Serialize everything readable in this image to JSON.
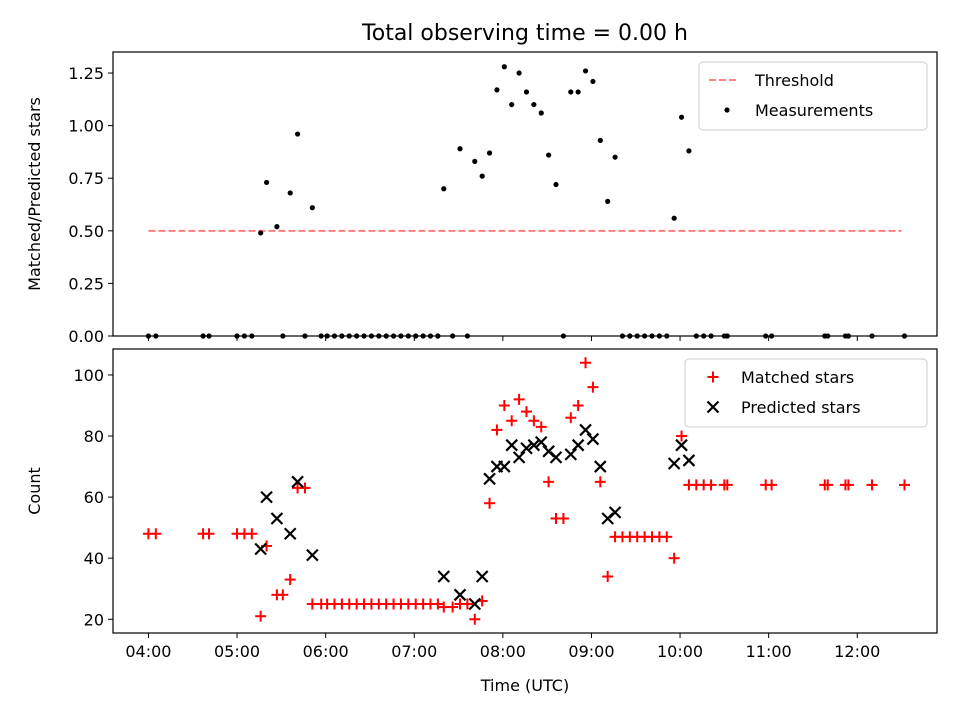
{
  "title": "Total observing time = 0.00 h",
  "chart_data": [
    {
      "type": "scatter",
      "ylabel": "Matched/Predicted stars",
      "xlabel": "",
      "xlim": [
        "03:36",
        "12:54"
      ],
      "ylim": [
        0,
        1.35
      ],
      "yticks": [
        0.0,
        0.25,
        0.5,
        0.75,
        1.0,
        1.25
      ],
      "ytick_labels": [
        "0.00",
        "0.25",
        "0.50",
        "0.75",
        "1.00",
        "1.25"
      ],
      "legend": {
        "position": "top-right",
        "entries": [
          "Threshold",
          "Measurements"
        ]
      },
      "threshold": {
        "name": "Threshold",
        "value": 0.5,
        "x_start": "04:00",
        "x_end": "12:30",
        "color": "#ff7f7f"
      },
      "series": [
        {
          "name": "Measurements",
          "color": "#000000",
          "points": [
            [
              "04:00",
              0
            ],
            [
              "04:05",
              0
            ],
            [
              "04:37",
              0
            ],
            [
              "04:41",
              0
            ],
            [
              "05:00",
              0
            ],
            [
              "05:05",
              0
            ],
            [
              "05:10",
              0
            ],
            [
              "05:16",
              0.49
            ],
            [
              "05:20",
              0.73
            ],
            [
              "05:27",
              0.52
            ],
            [
              "05:31",
              0
            ],
            [
              "05:36",
              0.68
            ],
            [
              "05:41",
              0.96
            ],
            [
              "05:46",
              0
            ],
            [
              "05:51",
              0.61
            ],
            [
              "05:57",
              0
            ],
            [
              "06:01",
              0
            ],
            [
              "06:06",
              0
            ],
            [
              "06:11",
              0
            ],
            [
              "06:16",
              0
            ],
            [
              "06:21",
              0
            ],
            [
              "06:26",
              0
            ],
            [
              "06:31",
              0
            ],
            [
              "06:36",
              0
            ],
            [
              "06:41",
              0
            ],
            [
              "06:46",
              0
            ],
            [
              "06:51",
              0
            ],
            [
              "06:56",
              0
            ],
            [
              "07:01",
              0
            ],
            [
              "07:06",
              0
            ],
            [
              "07:11",
              0
            ],
            [
              "07:16",
              0
            ],
            [
              "07:20",
              0.7
            ],
            [
              "07:26",
              0
            ],
            [
              "07:31",
              0.89
            ],
            [
              "07:36",
              0
            ],
            [
              "07:41",
              0.83
            ],
            [
              "07:46",
              0.76
            ],
            [
              "07:51",
              0.87
            ],
            [
              "07:56",
              1.17
            ],
            [
              "08:01",
              1.28
            ],
            [
              "08:06",
              1.1
            ],
            [
              "08:11",
              1.25
            ],
            [
              "08:16",
              1.16
            ],
            [
              "08:21",
              1.1
            ],
            [
              "08:26",
              1.06
            ],
            [
              "08:31",
              0.86
            ],
            [
              "08:36",
              0.72
            ],
            [
              "08:41",
              0
            ],
            [
              "08:46",
              1.16
            ],
            [
              "08:51",
              1.16
            ],
            [
              "08:56",
              1.26
            ],
            [
              "09:01",
              1.21
            ],
            [
              "09:06",
              0.93
            ],
            [
              "09:11",
              0.64
            ],
            [
              "09:16",
              0.85
            ],
            [
              "09:21",
              0
            ],
            [
              "09:26",
              0
            ],
            [
              "09:31",
              0
            ],
            [
              "09:36",
              0
            ],
            [
              "09:41",
              0
            ],
            [
              "09:46",
              0
            ],
            [
              "09:51",
              0
            ],
            [
              "09:56",
              0.56
            ],
            [
              "10:01",
              1.04
            ],
            [
              "10:06",
              0.88
            ],
            [
              "10:11",
              0
            ],
            [
              "10:16",
              0
            ],
            [
              "10:21",
              0
            ],
            [
              "10:30",
              0
            ],
            [
              "10:32",
              0
            ],
            [
              "10:58",
              0
            ],
            [
              "11:02",
              0
            ],
            [
              "11:38",
              0
            ],
            [
              "11:40",
              0
            ],
            [
              "11:52",
              0
            ],
            [
              "11:54",
              0
            ],
            [
              "12:10",
              0
            ],
            [
              "12:32",
              0
            ]
          ]
        }
      ]
    },
    {
      "type": "scatter",
      "ylabel": "Count",
      "xlabel": "Time (UTC)",
      "xlim": [
        "03:36",
        "12:54"
      ],
      "ylim": [
        15.5,
        108.5
      ],
      "yticks": [
        20,
        40,
        60,
        80,
        100
      ],
      "ytick_labels": [
        "20",
        "40",
        "60",
        "80",
        "100"
      ],
      "xticks": [
        "04:00",
        "05:00",
        "06:00",
        "07:00",
        "08:00",
        "09:00",
        "10:00",
        "11:00",
        "12:00"
      ],
      "xtick_labels": [
        "04:00",
        "05:00",
        "06:00",
        "07:00",
        "08:00",
        "09:00",
        "10:00",
        "11:00",
        "12:00"
      ],
      "legend": {
        "position": "top-right",
        "entries": [
          "Matched stars",
          "Predicted stars"
        ]
      },
      "series": [
        {
          "name": "Matched stars",
          "marker": "plus",
          "color": "#ff0000",
          "points": [
            [
              "04:00",
              48
            ],
            [
              "04:05",
              48
            ],
            [
              "04:37",
              48
            ],
            [
              "04:41",
              48
            ],
            [
              "05:00",
              48
            ],
            [
              "05:05",
              48
            ],
            [
              "05:10",
              48
            ],
            [
              "05:16",
              21
            ],
            [
              "05:20",
              44
            ],
            [
              "05:27",
              28
            ],
            [
              "05:31",
              28
            ],
            [
              "05:36",
              33
            ],
            [
              "05:41",
              63
            ],
            [
              "05:46",
              63
            ],
            [
              "05:51",
              25
            ],
            [
              "05:57",
              25
            ],
            [
              "06:01",
              25
            ],
            [
              "06:06",
              25
            ],
            [
              "06:11",
              25
            ],
            [
              "06:16",
              25
            ],
            [
              "06:21",
              25
            ],
            [
              "06:26",
              25
            ],
            [
              "06:31",
              25
            ],
            [
              "06:36",
              25
            ],
            [
              "06:41",
              25
            ],
            [
              "06:46",
              25
            ],
            [
              "06:51",
              25
            ],
            [
              "06:56",
              25
            ],
            [
              "07:01",
              25
            ],
            [
              "07:06",
              25
            ],
            [
              "07:11",
              25
            ],
            [
              "07:16",
              25
            ],
            [
              "07:20",
              24
            ],
            [
              "07:26",
              24
            ],
            [
              "07:31",
              25
            ],
            [
              "07:36",
              25
            ],
            [
              "07:41",
              20
            ],
            [
              "07:46",
              26
            ],
            [
              "07:51",
              58
            ],
            [
              "07:56",
              82
            ],
            [
              "08:01",
              90
            ],
            [
              "08:06",
              85
            ],
            [
              "08:11",
              92
            ],
            [
              "08:16",
              88
            ],
            [
              "08:21",
              85
            ],
            [
              "08:26",
              83
            ],
            [
              "08:31",
              65
            ],
            [
              "08:36",
              53
            ],
            [
              "08:41",
              53
            ],
            [
              "08:46",
              86
            ],
            [
              "08:51",
              90
            ],
            [
              "08:56",
              104
            ],
            [
              "09:01",
              96
            ],
            [
              "09:06",
              65
            ],
            [
              "09:11",
              34
            ],
            [
              "09:16",
              47
            ],
            [
              "09:21",
              47
            ],
            [
              "09:26",
              47
            ],
            [
              "09:31",
              47
            ],
            [
              "09:36",
              47
            ],
            [
              "09:41",
              47
            ],
            [
              "09:46",
              47
            ],
            [
              "09:51",
              47
            ],
            [
              "09:56",
              40
            ],
            [
              "10:01",
              80
            ],
            [
              "10:06",
              64
            ],
            [
              "10:11",
              64
            ],
            [
              "10:16",
              64
            ],
            [
              "10:21",
              64
            ],
            [
              "10:30",
              64
            ],
            [
              "10:32",
              64
            ],
            [
              "10:58",
              64
            ],
            [
              "11:02",
              64
            ],
            [
              "11:38",
              64
            ],
            [
              "11:40",
              64
            ],
            [
              "11:52",
              64
            ],
            [
              "11:54",
              64
            ],
            [
              "12:10",
              64
            ],
            [
              "12:32",
              64
            ]
          ]
        },
        {
          "name": "Predicted stars",
          "marker": "x",
          "color": "#000000",
          "points": [
            [
              "05:16",
              43
            ],
            [
              "05:20",
              60
            ],
            [
              "05:27",
              53
            ],
            [
              "05:36",
              48
            ],
            [
              "05:41",
              65
            ],
            [
              "05:51",
              41
            ],
            [
              "07:20",
              34
            ],
            [
              "07:31",
              28
            ],
            [
              "07:41",
              25
            ],
            [
              "07:46",
              34
            ],
            [
              "07:51",
              66
            ],
            [
              "07:56",
              70
            ],
            [
              "08:01",
              70
            ],
            [
              "08:06",
              77
            ],
            [
              "08:11",
              73
            ],
            [
              "08:16",
              76
            ],
            [
              "08:21",
              77
            ],
            [
              "08:26",
              78
            ],
            [
              "08:31",
              75
            ],
            [
              "08:36",
              73
            ],
            [
              "08:46",
              74
            ],
            [
              "08:51",
              77
            ],
            [
              "08:56",
              82
            ],
            [
              "09:01",
              79
            ],
            [
              "09:06",
              70
            ],
            [
              "09:11",
              53
            ],
            [
              "09:16",
              55
            ],
            [
              "09:56",
              71
            ],
            [
              "10:01",
              77
            ],
            [
              "10:06",
              72
            ]
          ]
        }
      ]
    }
  ]
}
